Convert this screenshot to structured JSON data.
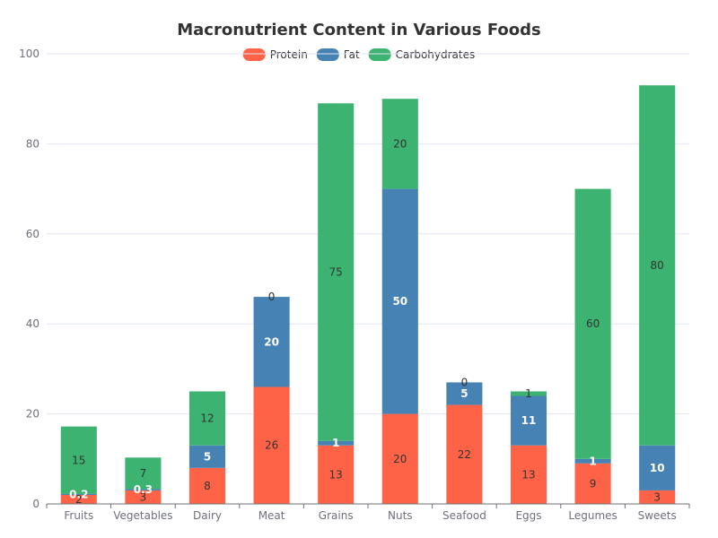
{
  "chart_data": {
    "type": "bar",
    "stacked": true,
    "title": "Macronutrient Content in Various Foods",
    "xlabel": "",
    "ylabel": "",
    "ylim": [
      0,
      100
    ],
    "yticks": [
      0,
      20,
      40,
      60,
      80,
      100
    ],
    "grid": true,
    "legend_position": "top-center",
    "categories": [
      "Fruits",
      "Vegetables",
      "Dairy",
      "Meat",
      "Grains",
      "Nuts",
      "Seafood",
      "Eggs",
      "Legumes",
      "Sweets"
    ],
    "series": [
      {
        "name": "Protein",
        "color": "#ff6347",
        "label_style": "dark",
        "values": [
          2,
          3,
          8,
          26,
          13,
          20,
          22,
          13,
          9,
          3
        ]
      },
      {
        "name": "Fat",
        "color": "#4682b4",
        "label_style": "light",
        "values": [
          0.2,
          0.3,
          5,
          20,
          1,
          50,
          5,
          11,
          1,
          10
        ]
      },
      {
        "name": "Carbohydrates",
        "color": "#3cb371",
        "label_style": "dark",
        "values": [
          15,
          7,
          12,
          0,
          75,
          20,
          0,
          1,
          60,
          80
        ]
      }
    ]
  }
}
